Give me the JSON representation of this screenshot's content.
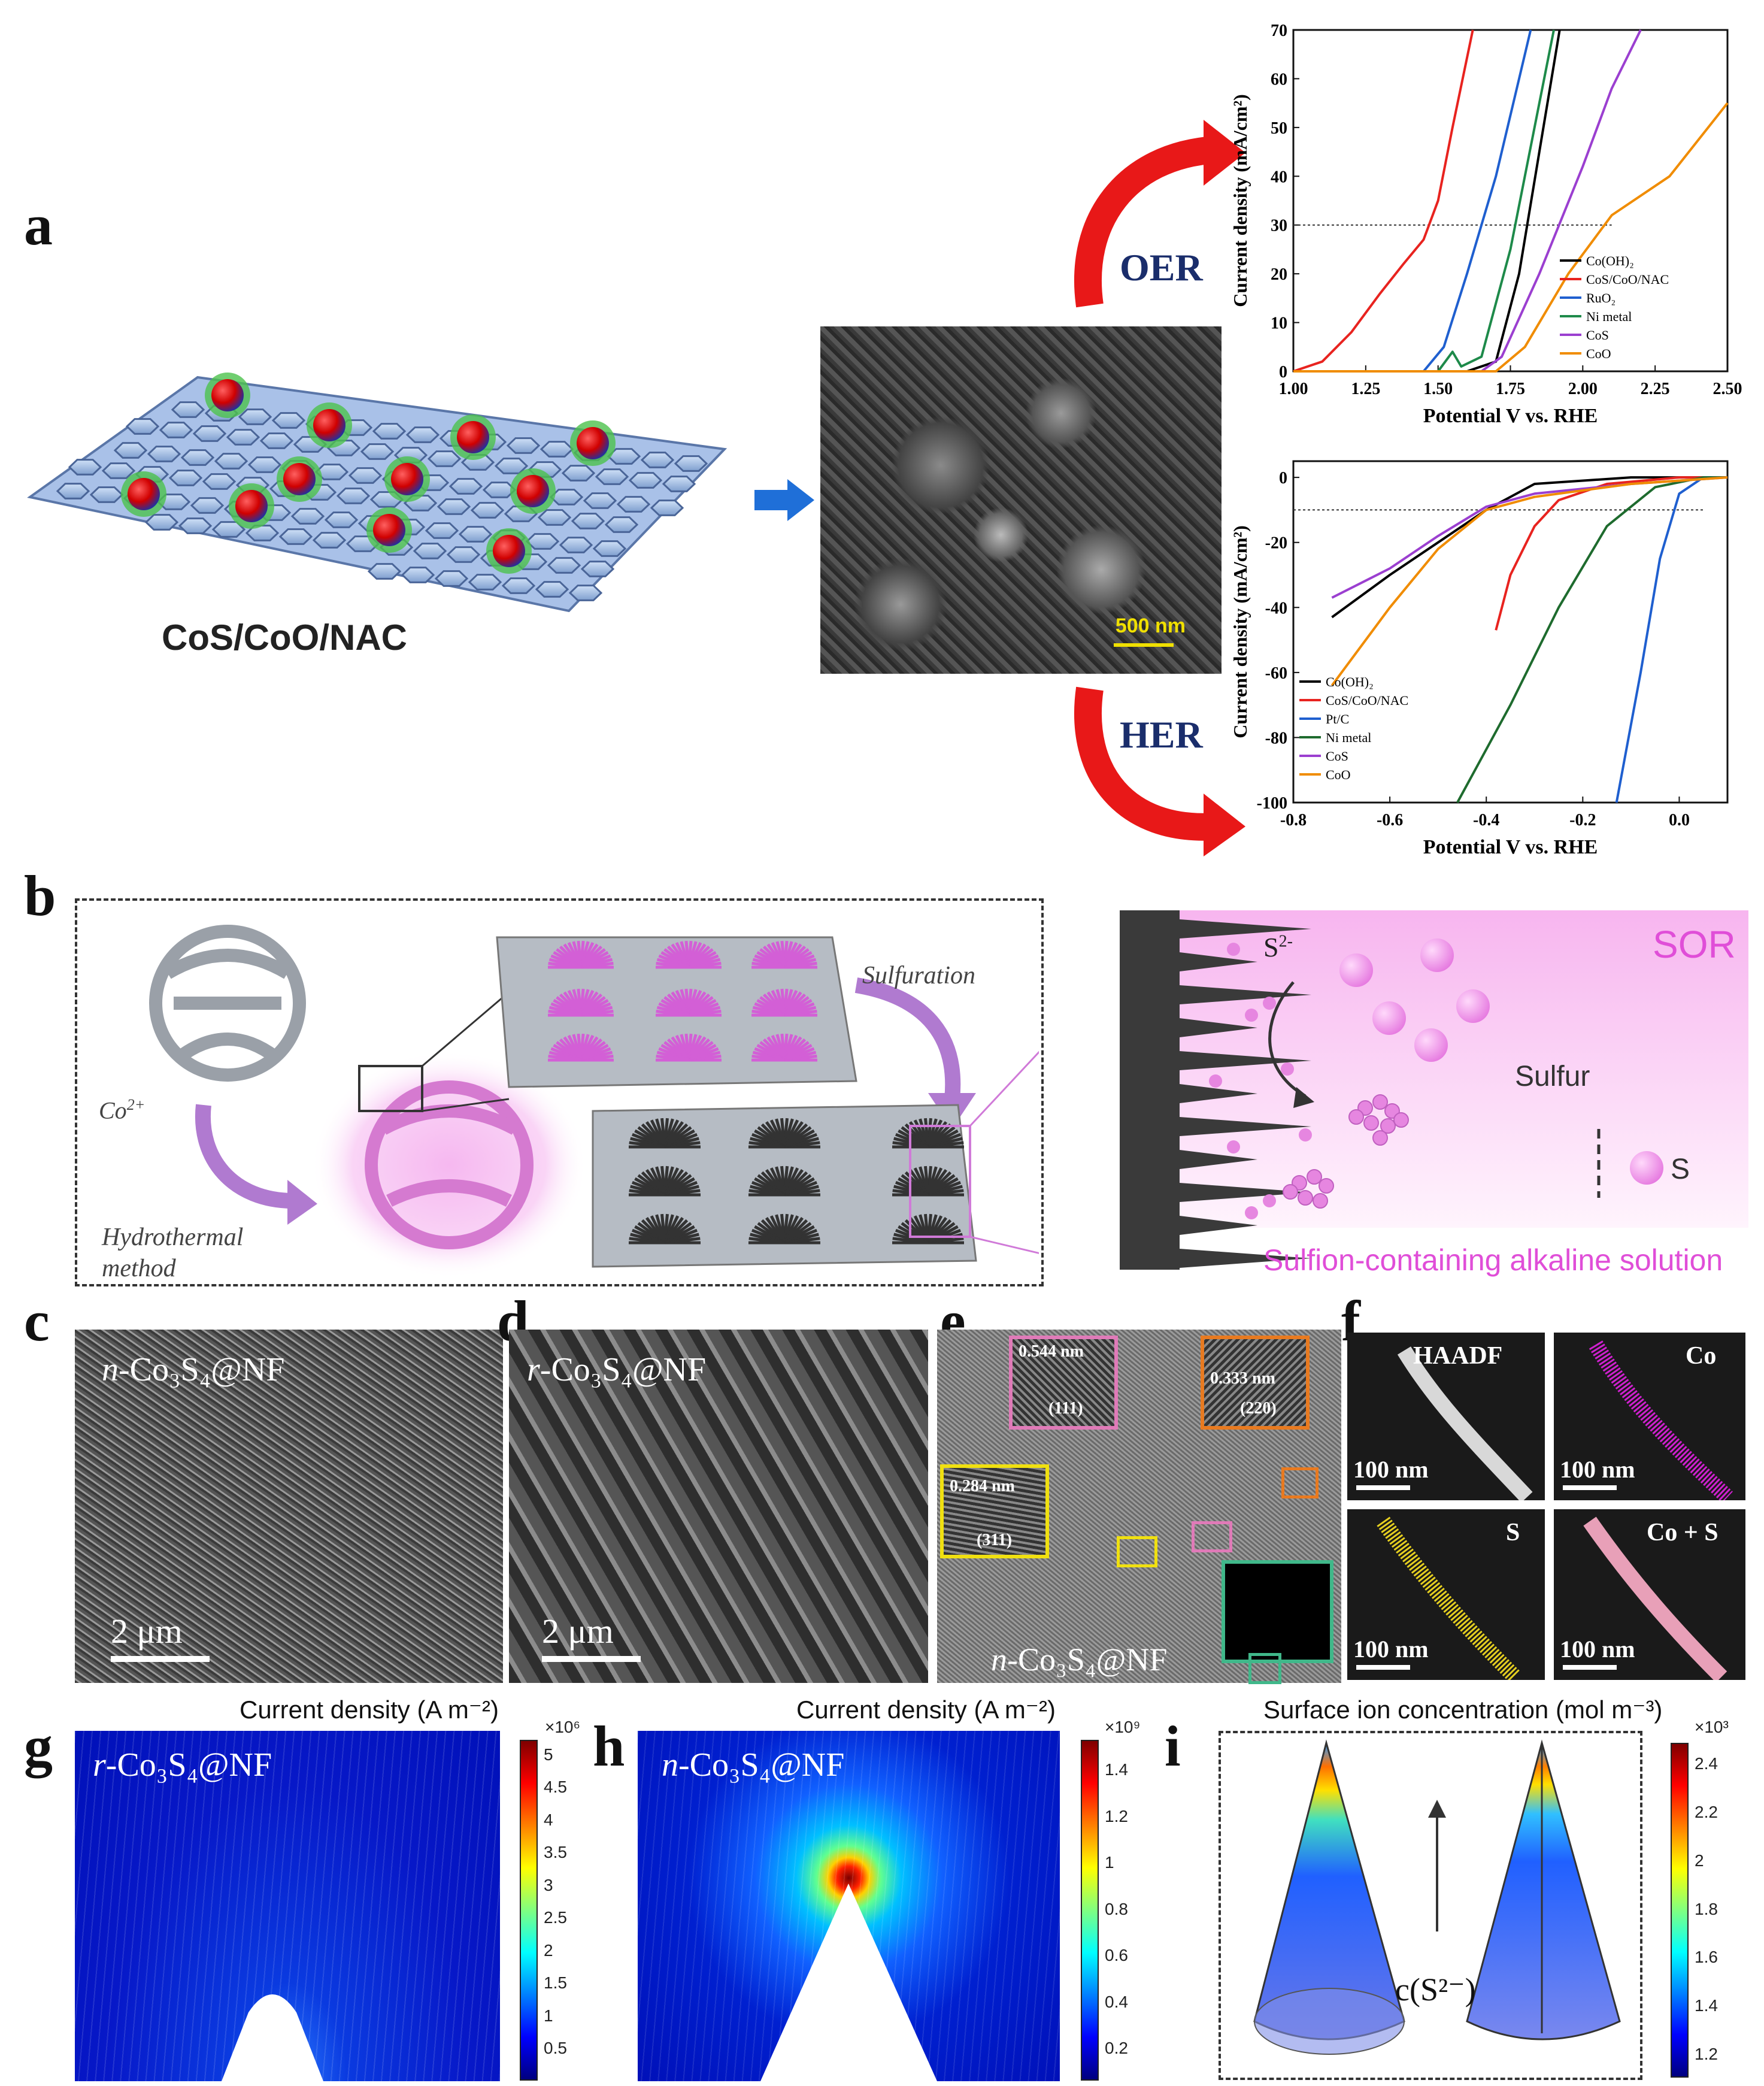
{
  "panel_letters": {
    "a": "a",
    "b": "b",
    "c": "c",
    "d": "d",
    "e": "e",
    "f": "f",
    "g": "g",
    "h": "h",
    "i": "i"
  },
  "panel_a": {
    "material_label": "CoS/CoO/NAC",
    "sem_scalebar": "500 nm",
    "oer_label": "OER",
    "her_label": "HER"
  },
  "chart_data": [
    {
      "type": "line",
      "panel": "OER",
      "xlabel": "Potential V vs. RHE",
      "ylabel": "Current density (mA/cm²)",
      "xlim": [
        1.0,
        2.5
      ],
      "ylim": [
        0,
        70
      ],
      "xticks": [
        "1.00",
        "1.25",
        "1.50",
        "1.75",
        "2.00",
        "2.25",
        "2.50"
      ],
      "yticks": [
        "0",
        "10",
        "20",
        "30",
        "40",
        "50",
        "60",
        "70"
      ],
      "reference_line": 30,
      "series": [
        {
          "name": "Co(OH)₂",
          "color": "#000000",
          "points": [
            [
              1.0,
              0
            ],
            [
              1.6,
              0
            ],
            [
              1.7,
              2
            ],
            [
              1.78,
              20
            ],
            [
              1.85,
              45
            ],
            [
              1.92,
              70
            ]
          ]
        },
        {
          "name": "CoS/CoO/NAC",
          "color": "#e8231f",
          "points": [
            [
              1.0,
              0
            ],
            [
              1.1,
              2
            ],
            [
              1.2,
              8
            ],
            [
              1.3,
              16
            ],
            [
              1.38,
              22
            ],
            [
              1.45,
              27
            ],
            [
              1.5,
              35
            ],
            [
              1.55,
              50
            ],
            [
              1.62,
              70
            ]
          ]
        },
        {
          "name": "RuO₂",
          "color": "#1f5fcf",
          "points": [
            [
              1.0,
              0
            ],
            [
              1.45,
              0
            ],
            [
              1.52,
              5
            ],
            [
              1.6,
              20
            ],
            [
              1.7,
              40
            ],
            [
              1.78,
              60
            ],
            [
              1.82,
              70
            ]
          ]
        },
        {
          "name": "Ni metal",
          "color": "#1e8a4a",
          "points": [
            [
              1.0,
              0
            ],
            [
              1.5,
              0
            ],
            [
              1.55,
              4
            ],
            [
              1.58,
              1
            ],
            [
              1.65,
              3
            ],
            [
              1.75,
              25
            ],
            [
              1.85,
              55
            ],
            [
              1.9,
              70
            ]
          ]
        },
        {
          "name": "CoS",
          "color": "#9b3fd0",
          "points": [
            [
              1.0,
              0
            ],
            [
              1.65,
              0
            ],
            [
              1.72,
              3
            ],
            [
              1.85,
              20
            ],
            [
              2.0,
              42
            ],
            [
              2.1,
              58
            ],
            [
              2.2,
              70
            ]
          ]
        },
        {
          "name": "CoO",
          "color": "#f08c00",
          "points": [
            [
              1.0,
              0
            ],
            [
              1.7,
              0
            ],
            [
              1.8,
              5
            ],
            [
              1.95,
              20
            ],
            [
              2.1,
              32
            ],
            [
              2.3,
              40
            ],
            [
              2.5,
              55
            ]
          ]
        }
      ]
    },
    {
      "type": "line",
      "panel": "HER",
      "xlabel": "Potential V vs. RHE",
      "ylabel": "Current density (mA/cm²)",
      "xlim": [
        -0.8,
        0.1
      ],
      "ylim": [
        -100,
        5
      ],
      "xticks": [
        "-0.8",
        "-0.6",
        "-0.4",
        "-0.2",
        "0.0"
      ],
      "yticks": [
        "0",
        "-20",
        "-40",
        "-60",
        "-80",
        "-100"
      ],
      "reference_line": -10,
      "series": [
        {
          "name": "Co(OH)₂",
          "color": "#000000",
          "points": [
            [
              -0.72,
              -43
            ],
            [
              -0.6,
              -30
            ],
            [
              -0.5,
              -20
            ],
            [
              -0.4,
              -10
            ],
            [
              -0.3,
              -2
            ],
            [
              -0.1,
              0
            ],
            [
              0.1,
              0
            ]
          ]
        },
        {
          "name": "CoS/CoO/NAC",
          "color": "#e8231f",
          "points": [
            [
              -0.38,
              -47
            ],
            [
              -0.35,
              -30
            ],
            [
              -0.3,
              -15
            ],
            [
              -0.25,
              -7
            ],
            [
              -0.15,
              -2
            ],
            [
              0.0,
              0
            ],
            [
              0.1,
              0
            ]
          ]
        },
        {
          "name": "Pt/C",
          "color": "#1f5fcf",
          "points": [
            [
              -0.13,
              -100
            ],
            [
              -0.08,
              -60
            ],
            [
              -0.04,
              -25
            ],
            [
              0.0,
              -5
            ],
            [
              0.05,
              0
            ],
            [
              0.1,
              0
            ]
          ]
        },
        {
          "name": "Ni metal",
          "color": "#1e6b2e",
          "points": [
            [
              -0.46,
              -100
            ],
            [
              -0.35,
              -70
            ],
            [
              -0.25,
              -40
            ],
            [
              -0.15,
              -15
            ],
            [
              -0.05,
              -3
            ],
            [
              0.05,
              0
            ],
            [
              0.1,
              0
            ]
          ]
        },
        {
          "name": "CoS",
          "color": "#9b3fd0",
          "points": [
            [
              -0.72,
              -37
            ],
            [
              -0.6,
              -28
            ],
            [
              -0.5,
              -18
            ],
            [
              -0.4,
              -9
            ],
            [
              -0.3,
              -5
            ],
            [
              -0.1,
              -2
            ],
            [
              0.1,
              0
            ]
          ]
        },
        {
          "name": "CoO",
          "color": "#f08c00",
          "points": [
            [
              -0.72,
              -64
            ],
            [
              -0.6,
              -40
            ],
            [
              -0.5,
              -22
            ],
            [
              -0.4,
              -10
            ],
            [
              -0.3,
              -6
            ],
            [
              -0.1,
              -2
            ],
            [
              0.1,
              0
            ]
          ]
        }
      ]
    }
  ],
  "panel_b": {
    "co_label": "Co",
    "co_charge": "2+",
    "hydrothermal_1": "Hydrothermal",
    "hydrothermal_2": "method",
    "sulfuration": "Sulfuration",
    "sor": "SOR",
    "s2_label": "S",
    "s2_charge": "2-",
    "sulfur": "Sulfur",
    "s_legend": "S",
    "solution": "Sulfion-containing alkaline solution"
  },
  "panel_c": {
    "prefix": "n",
    "formula": "-Co₃S₄@NF",
    "scalebar": "2 μm"
  },
  "panel_d": {
    "prefix": "r",
    "formula": "-Co₃S₄@NF",
    "scalebar": "2 μm"
  },
  "panel_e": {
    "d1": "0.544 nm",
    "h1": "(111)",
    "d2": "0.333 nm",
    "h2": "(220)",
    "d3": "0.284 nm",
    "h3": "(311)",
    "prefix": "n",
    "formula": "-Co₃S₄@NF"
  },
  "panel_f": {
    "haadf": "HAADF",
    "co": "Co",
    "s": "S",
    "cos": "Co + S",
    "scalebar": "100 nm",
    "colors": {
      "co": "#d020d0",
      "s": "#e6d020",
      "cos": "#e8a0b8"
    }
  },
  "panel_g": {
    "title": "Current density (A m⁻²)",
    "prefix": "r",
    "formula": "-Co₃S₄@NF",
    "exponent": "×10⁶",
    "ticks": [
      "5",
      "4.5",
      "4",
      "3.5",
      "3",
      "2.5",
      "2",
      "1.5",
      "1",
      "0.5"
    ]
  },
  "panel_h": {
    "title": "Current density (A m⁻²)",
    "prefix": "n",
    "formula": "-Co₃S₄@NF",
    "exponent": "×10⁹",
    "ticks": [
      "1.4",
      "1.2",
      "1",
      "0.8",
      "0.6",
      "0.4",
      "0.2"
    ]
  },
  "panel_i": {
    "title": "Surface ion concentration (mol m⁻³)",
    "exponent": "×10³",
    "ticks": [
      "2.4",
      "2.2",
      "2",
      "1.8",
      "1.6",
      "1.4",
      "1.2"
    ],
    "c_label": "c(S²⁻)"
  }
}
